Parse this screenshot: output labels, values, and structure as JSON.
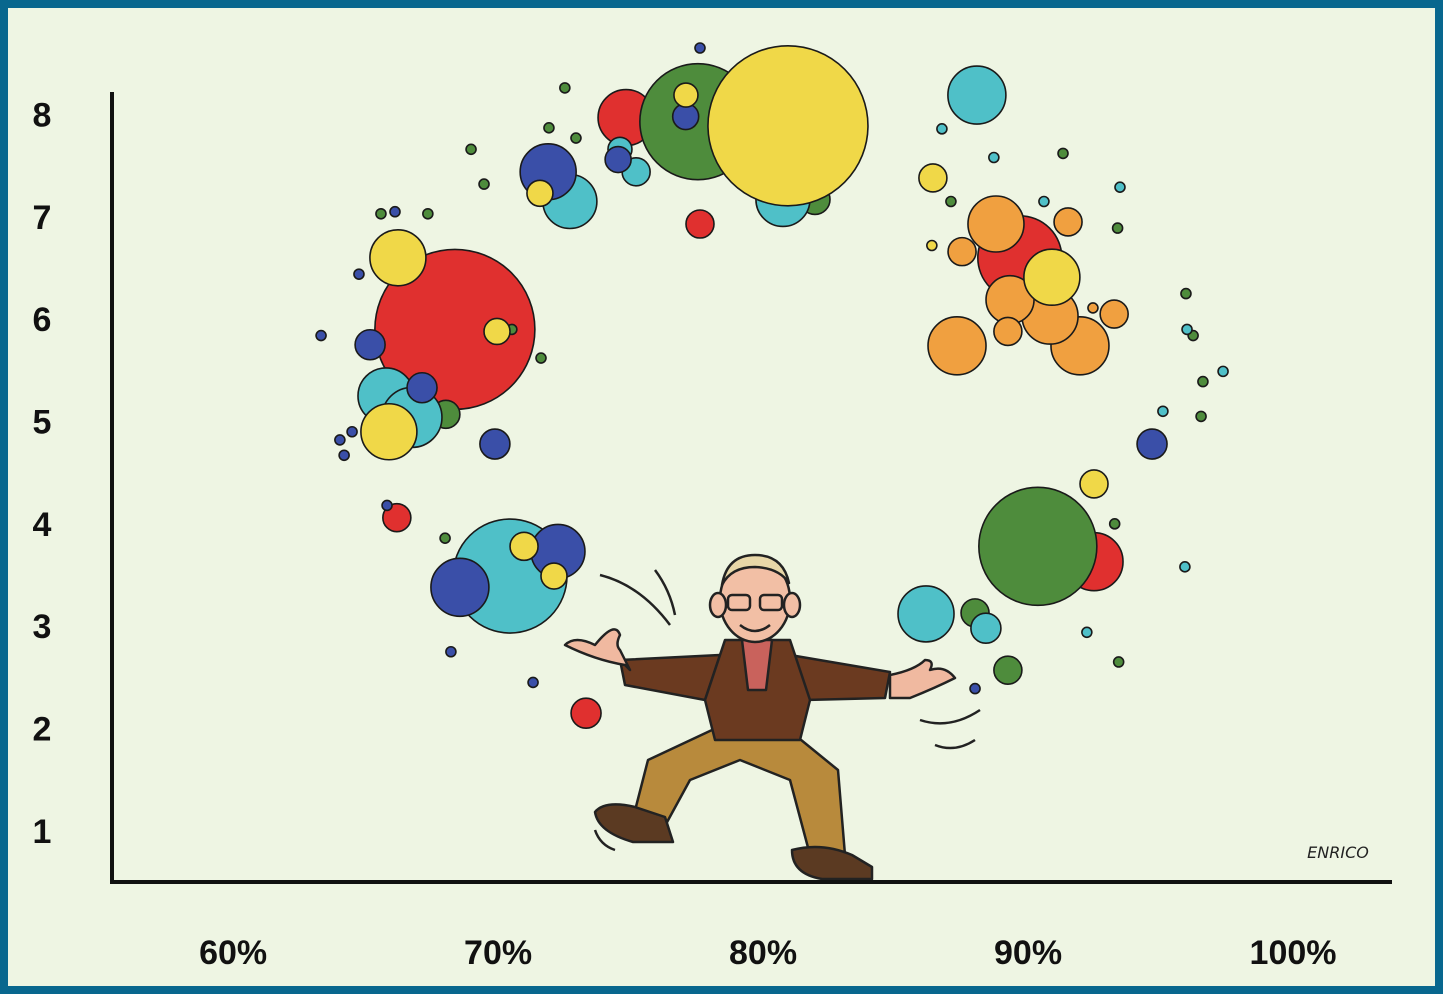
{
  "chart_data": {
    "type": "bubble",
    "annotation": "ENRICO",
    "xlim": [
      55.43,
      103.66
    ],
    "ylim": [
      0.53,
      8.25
    ],
    "xticks": [
      {
        "value": 60,
        "label": "60%"
      },
      {
        "value": 70,
        "label": "70%"
      },
      {
        "value": 80,
        "label": "80%"
      },
      {
        "value": 90,
        "label": "90%"
      },
      {
        "value": 100,
        "label": "100%"
      }
    ],
    "yticks": [
      1,
      2,
      3,
      4,
      5,
      6,
      7,
      8
    ],
    "grid": false,
    "series": [
      {
        "color": "#e0302f",
        "x": [
          68.37,
          74.83,
          77.62,
          89.69,
          92.49,
          66.18,
          73.32
        ],
        "y": [
          5.93,
          8.0,
          6.96,
          6.63,
          3.66,
          4.09,
          2.18
        ],
        "sizes": [
          80,
          28,
          14,
          42,
          29,
          14,
          15
        ]
      },
      {
        "color": "#4e8c3c",
        "x": [
          77.54,
          90.37,
          81.96,
          68.03,
          88.0,
          89.24,
          72.52,
          68.98,
          69.47,
          71.92,
          72.94,
          65.58,
          67.35,
          70.52,
          71.62,
          68.0,
          91.32,
          93.38,
          95.96,
          96.23,
          96.6,
          96.53,
          93.27,
          93.42,
          87.09
        ],
        "y": [
          7.96,
          3.81,
          7.2,
          5.1,
          3.16,
          2.6,
          8.29,
          7.69,
          7.35,
          7.9,
          7.8,
          7.06,
          7.06,
          5.93,
          5.65,
          3.89,
          7.65,
          6.92,
          6.28,
          5.87,
          5.42,
          5.08,
          4.03,
          2.68,
          7.18
        ],
        "sizes": [
          58,
          59,
          15,
          14,
          14,
          14,
          5,
          5,
          5,
          5,
          5,
          5,
          5,
          5,
          5,
          5,
          5,
          5,
          5,
          5,
          5,
          5,
          5,
          5,
          5
        ]
      },
      {
        "color": "#4fc0c8",
        "x": [
          70.45,
          65.77,
          66.75,
          72.71,
          88.07,
          80.75,
          86.15,
          88.41,
          75.21,
          74.6,
          86.75,
          88.71,
          90.6,
          93.47,
          96.0,
          97.36,
          95.09,
          95.92,
          92.22
        ],
        "y": [
          3.52,
          5.28,
          5.07,
          7.18,
          8.22,
          7.2,
          3.15,
          3.01,
          7.47,
          7.69,
          7.89,
          7.61,
          7.18,
          7.32,
          5.93,
          5.52,
          5.13,
          3.61,
          2.97
        ],
        "sizes": [
          57,
          28,
          30,
          27,
          29,
          27,
          28,
          15,
          14,
          12,
          5,
          5,
          5,
          5,
          5,
          5,
          5,
          5,
          5
        ]
      },
      {
        "color": "#3a4fa8",
        "x": [
          71.89,
          68.56,
          72.26,
          65.17,
          67.13,
          69.88,
          94.68,
          74.53,
          77.08,
          77.62,
          63.32,
          64.75,
          66.11,
          64.03,
          64.49,
          64.19,
          65.81,
          68.22,
          71.32,
          88.0
        ],
        "y": [
          7.47,
          3.41,
          3.76,
          5.78,
          5.36,
          4.81,
          4.81,
          7.59,
          8.01,
          8.68,
          5.87,
          6.47,
          7.08,
          4.85,
          4.93,
          4.7,
          4.21,
          2.78,
          2.48,
          2.42
        ],
        "sizes": [
          28,
          29,
          27,
          15,
          15,
          15,
          15,
          13,
          13,
          5,
          5,
          5,
          5,
          5,
          5,
          5,
          5,
          5,
          5,
          5
        ]
      },
      {
        "color": "#f0a040",
        "x": [
          87.32,
          88.79,
          91.96,
          90.83,
          89.32,
          87.51,
          91.51,
          93.25,
          89.24,
          92.45
        ],
        "y": [
          5.77,
          6.96,
          5.77,
          6.06,
          6.22,
          6.69,
          6.98,
          6.08,
          5.91,
          6.14
        ],
        "sizes": [
          29,
          28,
          29,
          28,
          24,
          14,
          14,
          14,
          14,
          5
        ]
      },
      {
        "color": "#f0d848",
        "x": [
          80.94,
          66.22,
          65.88,
          69.96,
          71.58,
          77.09,
          86.41,
          90.9,
          70.98,
          72.11,
          92.49,
          86.37
        ],
        "y": [
          7.92,
          6.63,
          4.93,
          5.91,
          7.26,
          8.22,
          7.41,
          6.44,
          3.81,
          3.52,
          4.42,
          6.75
        ],
        "sizes": [
          80,
          28,
          28,
          13,
          13,
          12,
          14,
          28,
          14,
          13,
          14,
          5
        ]
      }
    ]
  }
}
